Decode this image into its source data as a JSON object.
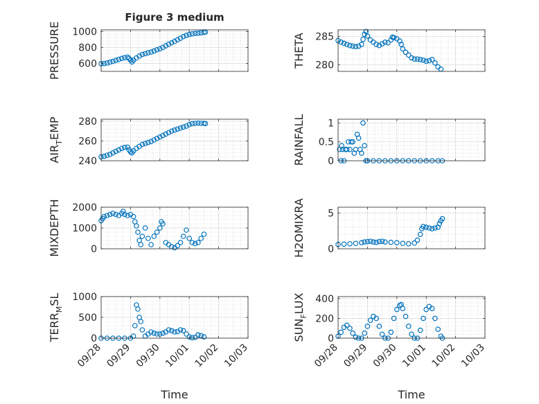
{
  "figure": {
    "title": "Figure 3 medium",
    "xlabel": "Time",
    "x_ticks": [
      "09/28",
      "09/29",
      "09/30",
      "10/01",
      "10/02",
      "10/03"
    ],
    "marker_color": "#0072BD"
  },
  "chart_data": [
    {
      "type": "scatter",
      "ylabel": "PRESSURE",
      "ylim": [
        500,
        1020
      ],
      "yticks": [
        600,
        800,
        1000
      ],
      "ytick_labels": [
        "600",
        "800",
        "1000"
      ],
      "grid": true,
      "points": [
        [
          0.0,
          595
        ],
        [
          0.1,
          598
        ],
        [
          0.2,
          605
        ],
        [
          0.3,
          615
        ],
        [
          0.4,
          625
        ],
        [
          0.5,
          638
        ],
        [
          0.6,
          650
        ],
        [
          0.7,
          662
        ],
        [
          0.8,
          672
        ],
        [
          0.9,
          678
        ],
        [
          0.95,
          662
        ],
        [
          1.0,
          640
        ],
        [
          1.05,
          618
        ],
        [
          1.1,
          640
        ],
        [
          1.2,
          668
        ],
        [
          1.3,
          692
        ],
        [
          1.4,
          712
        ],
        [
          1.5,
          722
        ],
        [
          1.6,
          732
        ],
        [
          1.7,
          742
        ],
        [
          1.8,
          755
        ],
        [
          1.9,
          770
        ],
        [
          2.0,
          782
        ],
        [
          2.1,
          800
        ],
        [
          2.2,
          820
        ],
        [
          2.3,
          840
        ],
        [
          2.4,
          858
        ],
        [
          2.5,
          875
        ],
        [
          2.6,
          895
        ],
        [
          2.7,
          915
        ],
        [
          2.8,
          935
        ],
        [
          2.9,
          950
        ],
        [
          3.0,
          962
        ],
        [
          3.1,
          970
        ],
        [
          3.2,
          975
        ],
        [
          3.3,
          978
        ],
        [
          3.4,
          982
        ],
        [
          3.5,
          988
        ],
        [
          3.55,
          992
        ]
      ]
    },
    {
      "type": "scatter",
      "ylabel": "THETA",
      "ylim": [
        278.8,
        286.2
      ],
      "yticks": [
        280,
        285
      ],
      "ytick_labels": [
        "280",
        "285"
      ],
      "grid": true,
      "points": [
        [
          0.0,
          284.3
        ],
        [
          0.1,
          284.0
        ],
        [
          0.2,
          283.8
        ],
        [
          0.3,
          283.6
        ],
        [
          0.4,
          283.4
        ],
        [
          0.5,
          283.3
        ],
        [
          0.6,
          283.2
        ],
        [
          0.7,
          283.3
        ],
        [
          0.8,
          283.6
        ],
        [
          0.85,
          284.5
        ],
        [
          0.9,
          285.4
        ],
        [
          0.95,
          285.9
        ],
        [
          1.0,
          285.1
        ],
        [
          1.1,
          284.4
        ],
        [
          1.2,
          284.0
        ],
        [
          1.3,
          283.6
        ],
        [
          1.4,
          283.4
        ],
        [
          1.5,
          283.7
        ],
        [
          1.6,
          284.0
        ],
        [
          1.7,
          283.9
        ],
        [
          1.8,
          284.4
        ],
        [
          1.85,
          284.9
        ],
        [
          1.9,
          284.8
        ],
        [
          2.0,
          284.6
        ],
        [
          2.1,
          284.2
        ],
        [
          2.15,
          283.6
        ],
        [
          2.2,
          282.8
        ],
        [
          2.3,
          282.2
        ],
        [
          2.4,
          281.7
        ],
        [
          2.5,
          281.2
        ],
        [
          2.6,
          281.0
        ],
        [
          2.7,
          281.0
        ],
        [
          2.8,
          280.9
        ],
        [
          2.9,
          280.8
        ],
        [
          3.0,
          280.6
        ],
        [
          3.1,
          280.7
        ],
        [
          3.2,
          280.9
        ],
        [
          3.3,
          280.3
        ],
        [
          3.4,
          279.6
        ],
        [
          3.5,
          279.2
        ]
      ]
    },
    {
      "type": "scatter",
      "ylabel": "AIR_TEMP",
      "ylim": [
        240,
        282
      ],
      "yticks": [
        240,
        260,
        280
      ],
      "ytick_labels": [
        "240",
        "260",
        "280"
      ],
      "grid": true,
      "points": [
        [
          0.0,
          244
        ],
        [
          0.1,
          244.5
        ],
        [
          0.2,
          245.5
        ],
        [
          0.3,
          246.5
        ],
        [
          0.4,
          248
        ],
        [
          0.5,
          249.5
        ],
        [
          0.6,
          251
        ],
        [
          0.7,
          252.5
        ],
        [
          0.8,
          253.5
        ],
        [
          0.9,
          253.8
        ],
        [
          0.95,
          251
        ],
        [
          1.0,
          249
        ],
        [
          1.05,
          248
        ],
        [
          1.1,
          250
        ],
        [
          1.2,
          252.5
        ],
        [
          1.3,
          254.5
        ],
        [
          1.4,
          256.5
        ],
        [
          1.5,
          257.5
        ],
        [
          1.6,
          258.5
        ],
        [
          1.7,
          259.5
        ],
        [
          1.8,
          261
        ],
        [
          1.9,
          262.5
        ],
        [
          2.0,
          264
        ],
        [
          2.1,
          265.5
        ],
        [
          2.2,
          267
        ],
        [
          2.3,
          268.5
        ],
        [
          2.4,
          270
        ],
        [
          2.5,
          271
        ],
        [
          2.6,
          272
        ],
        [
          2.7,
          273
        ],
        [
          2.8,
          274
        ],
        [
          2.9,
          275
        ],
        [
          3.0,
          276.5
        ],
        [
          3.1,
          277.5
        ],
        [
          3.2,
          277.8
        ],
        [
          3.3,
          278
        ],
        [
          3.4,
          277.8
        ],
        [
          3.5,
          277.8
        ],
        [
          3.55,
          277.6
        ]
      ]
    },
    {
      "type": "scatter",
      "ylabel": "RAINFALL",
      "ylim": [
        0,
        1.1
      ],
      "yticks": [
        0,
        0.5,
        1
      ],
      "ytick_labels": [
        "0",
        "0.5",
        "1"
      ],
      "grid": true,
      "points": [
        [
          0.05,
          0.3
        ],
        [
          0.1,
          0.0
        ],
        [
          0.12,
          0.4
        ],
        [
          0.15,
          0.3
        ],
        [
          0.2,
          0.0
        ],
        [
          0.25,
          0.3
        ],
        [
          0.3,
          0.3
        ],
        [
          0.35,
          0.5
        ],
        [
          0.4,
          0.3
        ],
        [
          0.45,
          0.5
        ],
        [
          0.5,
          0.5
        ],
        [
          0.55,
          0.2
        ],
        [
          0.6,
          0.3
        ],
        [
          0.65,
          0.7
        ],
        [
          0.7,
          0.6
        ],
        [
          0.75,
          0.3
        ],
        [
          0.8,
          0.2
        ],
        [
          0.85,
          1.0
        ],
        [
          0.9,
          0.4
        ],
        [
          0.95,
          0.0
        ],
        [
          1.0,
          0.0
        ],
        [
          1.2,
          0.0
        ],
        [
          1.4,
          0.0
        ],
        [
          1.6,
          0.0
        ],
        [
          1.8,
          0.0
        ],
        [
          2.0,
          0.0
        ],
        [
          2.2,
          0.0
        ],
        [
          2.4,
          0.0
        ],
        [
          2.6,
          0.0
        ],
        [
          2.8,
          0.0
        ],
        [
          3.0,
          0.0
        ],
        [
          3.2,
          0.0
        ],
        [
          3.4,
          0.0
        ],
        [
          3.55,
          0.0
        ]
      ]
    },
    {
      "type": "scatter",
      "ylabel": "MIXDEPTH",
      "ylim": [
        0,
        2000
      ],
      "yticks": [
        0,
        1000,
        2000
      ],
      "ytick_labels": [
        "0",
        "1000",
        "2000"
      ],
      "grid": true,
      "points": [
        [
          0.0,
          1350
        ],
        [
          0.05,
          1450
        ],
        [
          0.1,
          1550
        ],
        [
          0.2,
          1600
        ],
        [
          0.3,
          1650
        ],
        [
          0.4,
          1700
        ],
        [
          0.5,
          1650
        ],
        [
          0.6,
          1600
        ],
        [
          0.7,
          1700
        ],
        [
          0.75,
          1800
        ],
        [
          0.8,
          1650
        ],
        [
          0.9,
          1600
        ],
        [
          1.0,
          1650
        ],
        [
          1.1,
          1550
        ],
        [
          1.15,
          1300
        ],
        [
          1.2,
          1100
        ],
        [
          1.25,
          800
        ],
        [
          1.3,
          400
        ],
        [
          1.35,
          200
        ],
        [
          1.4,
          600
        ],
        [
          1.5,
          1000
        ],
        [
          1.6,
          500
        ],
        [
          1.7,
          200
        ],
        [
          1.8,
          600
        ],
        [
          1.9,
          800
        ],
        [
          2.0,
          1000
        ],
        [
          2.05,
          1300
        ],
        [
          2.1,
          1200
        ],
        [
          2.2,
          300
        ],
        [
          2.3,
          200
        ],
        [
          2.4,
          100
        ],
        [
          2.5,
          50
        ],
        [
          2.6,
          150
        ],
        [
          2.7,
          300
        ],
        [
          2.8,
          600
        ],
        [
          2.9,
          900
        ],
        [
          3.0,
          500
        ],
        [
          3.1,
          300
        ],
        [
          3.2,
          250
        ],
        [
          3.3,
          300
        ],
        [
          3.4,
          500
        ],
        [
          3.5,
          700
        ]
      ]
    },
    {
      "type": "scatter",
      "ylabel": "H2OMIXRA",
      "ylim": [
        0,
        5.8
      ],
      "yticks": [
        0,
        5
      ],
      "ytick_labels": [
        "0",
        "5"
      ],
      "grid": true,
      "points": [
        [
          0.0,
          0.6
        ],
        [
          0.2,
          0.65
        ],
        [
          0.4,
          0.7
        ],
        [
          0.6,
          0.75
        ],
        [
          0.8,
          0.85
        ],
        [
          0.9,
          0.95
        ],
        [
          1.0,
          1.0
        ],
        [
          1.1,
          1.05
        ],
        [
          1.2,
          0.95
        ],
        [
          1.3,
          0.9
        ],
        [
          1.4,
          1.0
        ],
        [
          1.5,
          1.05
        ],
        [
          1.6,
          0.95
        ],
        [
          1.8,
          0.9
        ],
        [
          2.0,
          0.85
        ],
        [
          2.2,
          0.75
        ],
        [
          2.4,
          0.7
        ],
        [
          2.6,
          0.8
        ],
        [
          2.7,
          1.2
        ],
        [
          2.8,
          2.0
        ],
        [
          2.85,
          2.8
        ],
        [
          2.9,
          3.1
        ],
        [
          3.0,
          3.0
        ],
        [
          3.1,
          2.9
        ],
        [
          3.2,
          2.8
        ],
        [
          3.3,
          2.9
        ],
        [
          3.4,
          3.0
        ],
        [
          3.45,
          3.5
        ],
        [
          3.5,
          3.9
        ],
        [
          3.55,
          4.2
        ]
      ]
    },
    {
      "type": "scatter",
      "ylabel": "TERR_MSL",
      "ylim": [
        0,
        1000
      ],
      "yticks": [
        0,
        500,
        1000
      ],
      "ytick_labels": [
        "0",
        "500",
        "1000"
      ],
      "grid": true,
      "points": [
        [
          0.0,
          0
        ],
        [
          0.2,
          0
        ],
        [
          0.4,
          0
        ],
        [
          0.6,
          0
        ],
        [
          0.8,
          0
        ],
        [
          1.0,
          0
        ],
        [
          1.1,
          50
        ],
        [
          1.15,
          300
        ],
        [
          1.2,
          800
        ],
        [
          1.25,
          700
        ],
        [
          1.3,
          500
        ],
        [
          1.35,
          400
        ],
        [
          1.4,
          200
        ],
        [
          1.5,
          50
        ],
        [
          1.6,
          100
        ],
        [
          1.7,
          150
        ],
        [
          1.8,
          120
        ],
        [
          1.9,
          100
        ],
        [
          2.0,
          100
        ],
        [
          2.1,
          120
        ],
        [
          2.2,
          150
        ],
        [
          2.3,
          200
        ],
        [
          2.4,
          180
        ],
        [
          2.5,
          150
        ],
        [
          2.6,
          160
        ],
        [
          2.7,
          200
        ],
        [
          2.8,
          180
        ],
        [
          2.9,
          100
        ],
        [
          3.0,
          30
        ],
        [
          3.1,
          10
        ],
        [
          3.2,
          20
        ],
        [
          3.3,
          80
        ],
        [
          3.4,
          60
        ],
        [
          3.5,
          30
        ]
      ]
    },
    {
      "type": "scatter",
      "ylabel": "SUN_FLUX",
      "ylim": [
        0,
        420
      ],
      "yticks": [
        0,
        200,
        400
      ],
      "ytick_labels": [
        "0",
        "200",
        "400"
      ],
      "grid": true,
      "points": [
        [
          0.0,
          20
        ],
        [
          0.1,
          60
        ],
        [
          0.2,
          110
        ],
        [
          0.3,
          130
        ],
        [
          0.4,
          100
        ],
        [
          0.5,
          50
        ],
        [
          0.6,
          10
        ],
        [
          0.7,
          0
        ],
        [
          0.8,
          0
        ],
        [
          0.9,
          50
        ],
        [
          1.0,
          120
        ],
        [
          1.1,
          180
        ],
        [
          1.2,
          220
        ],
        [
          1.3,
          200
        ],
        [
          1.4,
          120
        ],
        [
          1.5,
          40
        ],
        [
          1.6,
          0
        ],
        [
          1.7,
          0
        ],
        [
          1.8,
          60
        ],
        [
          1.9,
          200
        ],
        [
          2.0,
          290
        ],
        [
          2.1,
          330
        ],
        [
          2.15,
          340
        ],
        [
          2.2,
          300
        ],
        [
          2.3,
          220
        ],
        [
          2.4,
          120
        ],
        [
          2.5,
          40
        ],
        [
          2.6,
          0
        ],
        [
          2.7,
          0
        ],
        [
          2.8,
          80
        ],
        [
          2.9,
          200
        ],
        [
          3.0,
          290
        ],
        [
          3.1,
          320
        ],
        [
          3.2,
          300
        ],
        [
          3.3,
          200
        ],
        [
          3.4,
          90
        ],
        [
          3.5,
          20
        ],
        [
          3.55,
          0
        ]
      ]
    }
  ]
}
